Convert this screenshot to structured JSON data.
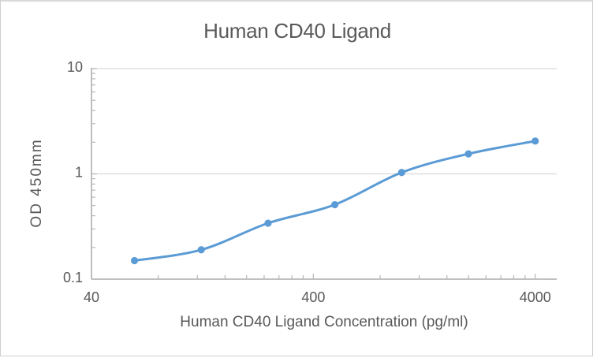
{
  "chart_data": {
    "type": "line",
    "title": "Human CD40 Ligand",
    "xlabel": "Human CD40 Ligand Concentration (pg/ml)",
    "ylabel": "OD 450mm",
    "x_scale": "log",
    "y_scale": "log",
    "xlim": [
      40,
      5000
    ],
    "ylim": [
      0.1,
      10
    ],
    "x_ticks": [
      40,
      400,
      4000
    ],
    "y_ticks": [
      0.1,
      1,
      10
    ],
    "x_minor_ticks": [
      80,
      120,
      160,
      200,
      240,
      280,
      320,
      360,
      800,
      1200,
      1600,
      2000,
      2400,
      2800,
      3200,
      3600
    ],
    "y_minor_ticks": [
      0.2,
      0.3,
      0.4,
      0.5,
      0.6,
      0.7,
      0.8,
      0.9,
      2,
      3,
      4,
      5,
      6,
      7,
      8,
      9
    ],
    "grid": "horizontal-major-only",
    "legend": "none",
    "smooth": true,
    "x": [
      62.5,
      125,
      250,
      500,
      1000,
      2000,
      4000
    ],
    "series": [
      {
        "name": "Human CD40 Ligand",
        "values": [
          0.15,
          0.19,
          0.34,
          0.51,
          1.03,
          1.55,
          2.05
        ]
      }
    ],
    "colors": {
      "line": "#5b9bd5",
      "marker": "#5b9bd5",
      "gridline": "#d9d9d9",
      "axis": "#b7b7b7",
      "tick": "#b7b7b7",
      "text": "#595959",
      "background": "#ffffff",
      "frame_border": "#d9d9d9"
    }
  }
}
